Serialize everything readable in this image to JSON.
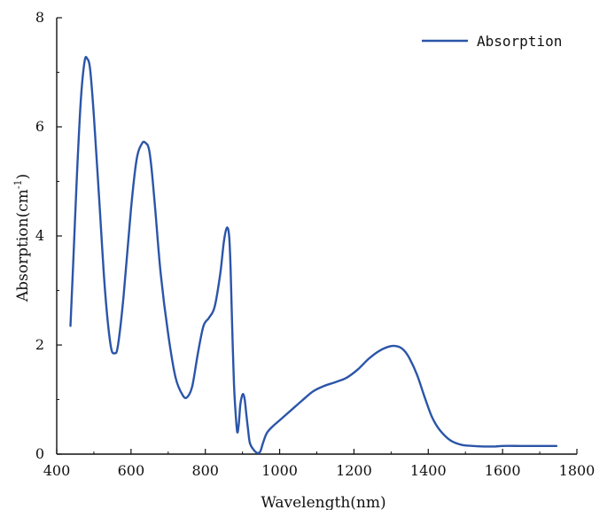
{
  "chart_data": {
    "type": "line",
    "xlabel": "Wavelength(nm)",
    "ylabel_main": "Absorption(cm",
    "ylabel_sup": "-1",
    "ylabel_tail": ")",
    "xlim": [
      400,
      1800
    ],
    "ylim": [
      0,
      8
    ],
    "xticks": [
      "400",
      "600",
      "800",
      "1000",
      "1200",
      "1400",
      "1600",
      "1800"
    ],
    "yticks": [
      "0",
      "2",
      "4",
      "6",
      "8"
    ],
    "legend_position": "top-right",
    "grid": false,
    "series": [
      {
        "name": "Absorption",
        "color": "#2b55a8",
        "x": [
          437,
          445,
          455,
          465,
          475,
          482,
          490,
          500,
          515,
          530,
          545,
          556,
          565,
          580,
          600,
          615,
          630,
          640,
          648,
          655,
          665,
          680,
          700,
          720,
          740,
          752,
          765,
          780,
          795,
          810,
          825,
          840,
          850,
          858,
          864,
          868,
          872,
          877,
          882,
          886,
          890,
          894,
          898,
          902,
          906,
          910,
          915,
          920,
          930,
          940,
          948,
          955,
          965,
          980,
          1000,
          1030,
          1060,
          1090,
          1120,
          1150,
          1180,
          1210,
          1240,
          1270,
          1300,
          1320,
          1335,
          1350,
          1370,
          1390,
          1410,
          1430,
          1460,
          1490,
          1520,
          1550,
          1580,
          1600,
          1650,
          1700,
          1745
        ],
        "values": [
          2.35,
          3.6,
          5.2,
          6.5,
          7.2,
          7.25,
          7.05,
          6.2,
          4.6,
          3.0,
          2.0,
          1.85,
          2.0,
          2.9,
          4.5,
          5.4,
          5.7,
          5.7,
          5.6,
          5.25,
          4.5,
          3.3,
          2.2,
          1.4,
          1.07,
          1.05,
          1.25,
          1.85,
          2.35,
          2.5,
          2.7,
          3.3,
          3.9,
          4.15,
          4.0,
          3.4,
          2.4,
          1.3,
          0.7,
          0.4,
          0.55,
          0.9,
          1.05,
          1.1,
          1.0,
          0.75,
          0.45,
          0.2,
          0.08,
          0.02,
          0.05,
          0.2,
          0.38,
          0.5,
          0.62,
          0.8,
          0.98,
          1.15,
          1.25,
          1.32,
          1.4,
          1.55,
          1.75,
          1.9,
          1.98,
          1.97,
          1.9,
          1.75,
          1.45,
          1.05,
          0.68,
          0.45,
          0.25,
          0.17,
          0.15,
          0.14,
          0.14,
          0.15,
          0.15,
          0.15,
          0.15
        ]
      }
    ]
  }
}
